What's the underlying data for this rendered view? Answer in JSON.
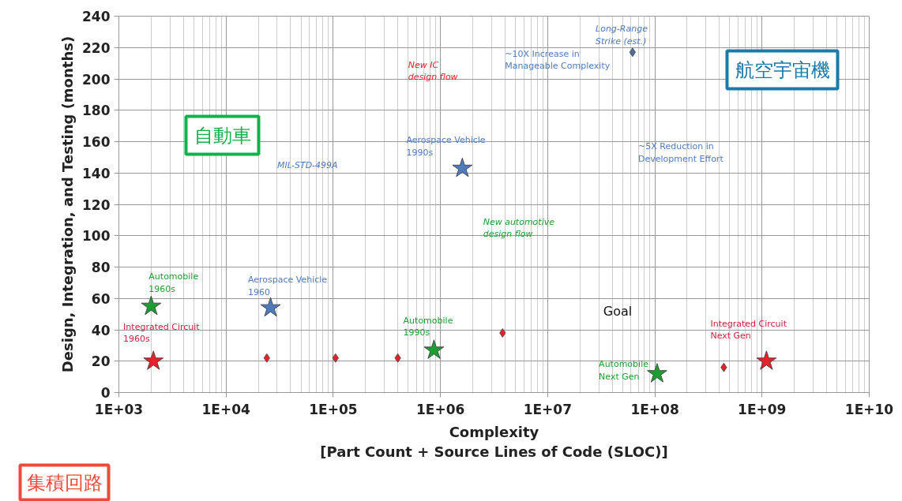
{
  "chart_data": {
    "type": "scatter",
    "xlabel": "Complexity\n[Part Count + Source Lines of Code (SLOC)]",
    "ylabel": "Design, Integration, and Testing (months)",
    "log": "x",
    "grid": true,
    "xlim": [
      1000,
      10000000000
    ],
    "ylim": [
      0,
      240
    ],
    "xticks": [
      {
        "value": 1000,
        "label": "1E+03"
      },
      {
        "value": 10000,
        "label": "1E+04"
      },
      {
        "value": 100000,
        "label": "1E+05"
      },
      {
        "value": 1000000,
        "label": "1E+06"
      },
      {
        "value": 10000000,
        "label": "1E+07"
      },
      {
        "value": 100000000,
        "label": "1E+08"
      },
      {
        "value": 1000000000,
        "label": "1E+09"
      },
      {
        "value": 10000000000,
        "label": "1E+10"
      }
    ],
    "yticks": [
      0,
      20,
      40,
      60,
      80,
      100,
      120,
      140,
      160,
      180,
      200,
      220,
      240
    ],
    "series": [
      {
        "color": "#1e9e32",
        "marker": "star",
        "x": [
          2000,
          870000,
          105000000
        ],
        "values": [
          55,
          27,
          12
        ]
      },
      {
        "color": "#4f7bbd",
        "marker": "star",
        "x": [
          26000,
          1600000
        ],
        "values": [
          54,
          143
        ]
      },
      {
        "color": "#4f6f9a",
        "marker": "diamond",
        "x": [
          62000000
        ],
        "values": [
          217
        ]
      },
      {
        "color": "#e8202a",
        "marker": "star",
        "x": [
          2100,
          1100000000
        ],
        "values": [
          20,
          20
        ]
      },
      {
        "color": "#e8202a",
        "marker": "diamond",
        "x": [
          24000,
          105000,
          400000,
          3800000,
          440000000
        ],
        "values": [
          22,
          22,
          22,
          38,
          16
        ]
      }
    ],
    "annotations": [
      "Automobile\n1960s",
      "Automobile\n1990s",
      "Automobile\nNext Gen",
      "Aerospace Vehicle\n1960",
      "Aerospace Vehicle\n1990s",
      "Long-Range\nStrike (est.)",
      "Integrated Circuit\n1960s",
      "Integrated Circuit\nNext Gen",
      "Goal",
      "~10X Increase in\nManageable Complexity",
      "~5X Reduction in\nDevelopment Effort",
      "MIL-STD-499A",
      "New IC\ndesign flow",
      "New automotive\ndesign flow",
      "航空宇宙機",
      "自動車",
      "集積回路"
    ]
  }
}
